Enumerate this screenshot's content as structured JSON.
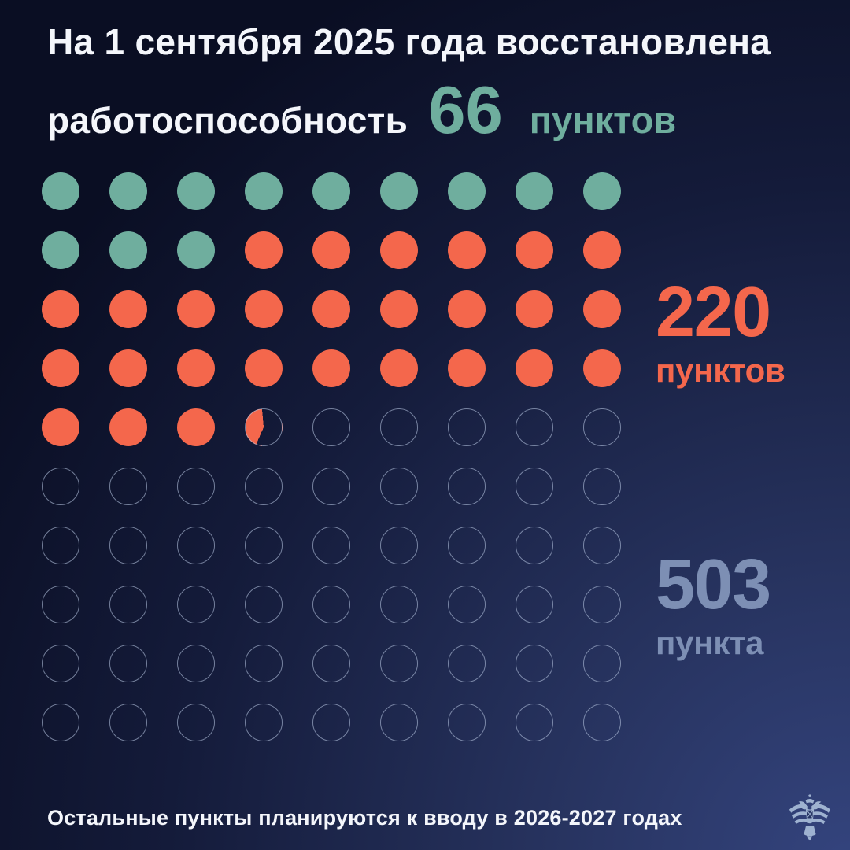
{
  "colors": {
    "teal": "#6FAE9E",
    "coral": "#F4674C",
    "muted_blue": "#7D8FB4",
    "outline": "rgba(177,192,219,0.62)",
    "background_dark": "#0A0E23",
    "background_glow": "#34447E",
    "text_white": "#F4F6FB",
    "emblem_blue": "#A8BCD8"
  },
  "title": {
    "line1": "На 1 сентября 2025 года восстановлена",
    "line2": "работоспособность"
  },
  "chart_data": {
    "type": "waffle",
    "title": "На 1 сентября 2025 года восстановлена работоспособность 66 пунктов",
    "grid": {
      "columns": 9,
      "rows": 10,
      "total_dots": 90,
      "fill_order": "left-to-right, top-to-bottom"
    },
    "legend_position": "right",
    "series": [
      {
        "name": "66 пунктов (восстановлена работоспособность)",
        "value": 66,
        "unit": "пунктов",
        "color_key": "teal",
        "dots_full": 12,
        "dots_partial": 0
      },
      {
        "name": "220 пунктов",
        "value": 220,
        "unit": "пунктов",
        "color_key": "coral",
        "dots_full": 27,
        "dots_partial": 0.42
      },
      {
        "name": "503 пункта",
        "value": 503,
        "unit": "пункта",
        "color_key": "outlined",
        "dots_full": 50,
        "dots_partial": 0
      }
    ],
    "partial_dot_start_angle_deg": 204
  },
  "footer": {
    "note": "Остальные пункты планируются к вводу в 2026-2027 годах"
  },
  "icons": {
    "bottom_right": "double-headed-eagle-emblem"
  }
}
